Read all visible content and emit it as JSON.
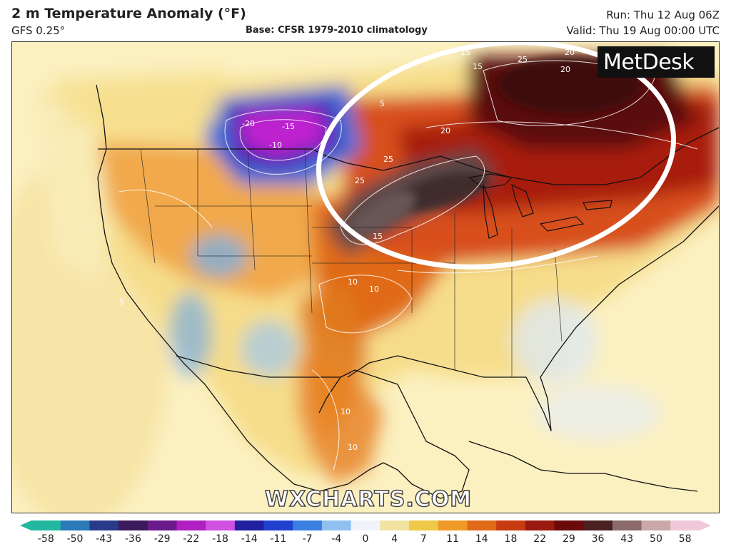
{
  "header": {
    "title": "2 m Temperature Anomaly (°F)",
    "model": "GFS 0.25°",
    "base": "Base: CFSR 1979-2010 climatology",
    "run": "Run: Thu 12 Aug 06Z",
    "valid": "Valid: Thu 19 Aug 00:00 UTC"
  },
  "branding": {
    "metdesk": "MetDesk",
    "watermark": "WXCHARTS.COM"
  },
  "map": {
    "region": "North America",
    "highlight": "white-ellipse",
    "contour_labels": [
      "25",
      "15",
      "20",
      "20",
      "-20",
      "-15",
      "-10",
      "25",
      "20",
      "25",
      "15",
      "15",
      "10",
      "10",
      "5",
      "5",
      "10",
      "10"
    ]
  },
  "colorbar": {
    "ticks": [
      "-58",
      "-50",
      "-43",
      "-36",
      "-29",
      "-22",
      "-18",
      "-14",
      "-11",
      "-7",
      "-4",
      "0",
      "4",
      "7",
      "11",
      "14",
      "18",
      "22",
      "29",
      "36",
      "43",
      "50",
      "58"
    ],
    "colors": [
      "#22b8a0",
      "#2a7ab8",
      "#2a3a8a",
      "#3a1a5a",
      "#6a1a8a",
      "#b020c0",
      "#d050e0",
      "#2020a0",
      "#2040d0",
      "#3a80e0",
      "#90c0f0",
      "#f0f4f8",
      "#f2e2a0",
      "#f0c848",
      "#f09a28",
      "#e06a18",
      "#c83a10",
      "#9a1a10",
      "#6a0a0a",
      "#4a2020",
      "#8a6a6a",
      "#c8a8a8",
      "#f0c8d8"
    ]
  },
  "palette": {
    "sea": "#fbf0c0",
    "land_neutral": "#f6dd8a",
    "warm": "#f09a28",
    "hot": "#c83a10",
    "extreme": "#5a1010",
    "cold": "#7aaee0",
    "very_cold": "#a020c0",
    "ellipse": "#ffffff",
    "coast": "#111111"
  }
}
